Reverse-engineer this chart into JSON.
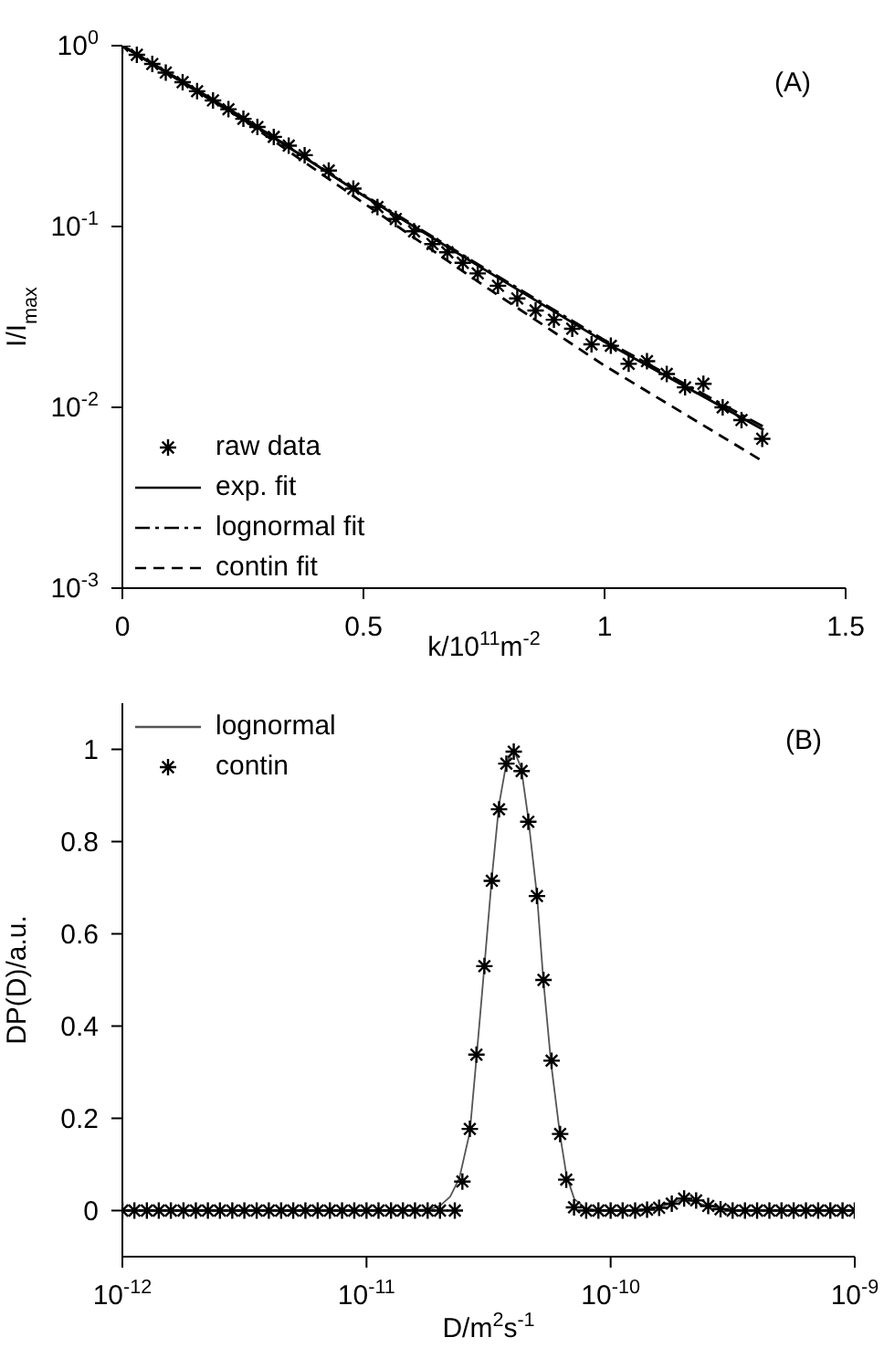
{
  "chart_data": [
    {
      "type": "line",
      "xlabel": "k/10$^{11}$m$^{-2}$",
      "ylabel": "I/I$_{max}$",
      "annotations": [
        "(A)"
      ],
      "log": "y",
      "grid": false,
      "legend": "bottom left",
      "xlim": [
        0,
        1.5
      ],
      "xticks": [
        0,
        0.5,
        1,
        1.5
      ],
      "ylim": [
        0.001,
        1
      ],
      "yticks": [
        {
          "value": 0.001,
          "label": "10$^{-3}$"
        },
        {
          "value": 0.01,
          "label": "10$^{-2}$"
        },
        {
          "value": 0.1,
          "label": "10$^{-1}$"
        },
        {
          "value": 1,
          "label": "10$^{0}$"
        }
      ],
      "series": [
        {
          "name": "raw data",
          "type": "scatter",
          "marker": "cross",
          "color": "#000000",
          "x": [
            0,
            0.03,
            0.062,
            0.09,
            0.125,
            0.155,
            0.188,
            0.22,
            0.251,
            0.28,
            0.314,
            0.345,
            0.378,
            0.428,
            0.479,
            0.529,
            0.567,
            0.605,
            0.643,
            0.674,
            0.706,
            0.737,
            0.779,
            0.819,
            0.857,
            0.895,
            0.933,
            0.973,
            1.013,
            1.05,
            1.088,
            1.129,
            1.167,
            1.205,
            1.245,
            1.284,
            1.327
          ],
          "values": [
            1,
            0.89,
            0.792,
            0.71,
            0.628,
            0.56,
            0.498,
            0.445,
            0.394,
            0.355,
            0.313,
            0.28,
            0.248,
            0.204,
            0.162,
            0.128,
            0.11,
            0.094,
            0.08,
            0.072,
            0.063,
            0.055,
            0.047,
            0.04,
            0.0343,
            0.0305,
            0.0272,
            0.0223,
            0.0219,
            0.0174,
            0.018,
            0.0153,
            0.0129,
            0.0135,
            0.01,
            0.0085,
            0.0067
          ]
        },
        {
          "name": "exp. fit",
          "line_style": "solid",
          "marker": "none",
          "color": "#000000",
          "x": [
            0,
            0.25,
            0.5,
            0.75,
            1.0,
            1.33
          ],
          "values": [
            1,
            0.4,
            0.148,
            0.058,
            0.023,
            0.0075
          ]
        },
        {
          "name": "lognormal fit",
          "line_style": "dashdot",
          "marker": "none",
          "color": "#000000",
          "x": [
            0,
            0.25,
            0.5,
            0.75,
            1.0,
            1.33
          ],
          "values": [
            1,
            0.4,
            0.15,
            0.059,
            0.0235,
            0.0078
          ]
        },
        {
          "name": "contin fit",
          "line_style": "dashed",
          "marker": "none",
          "color": "#000000",
          "x": [
            0,
            0.25,
            0.5,
            0.75,
            1.0,
            1.33
          ],
          "values": [
            1,
            0.39,
            0.135,
            0.047,
            0.017,
            0.005
          ]
        }
      ]
    },
    {
      "type": "line",
      "xlabel": "D/m$^{2}$s$^{-1}$",
      "ylabel": "DP(D)/a.u.",
      "annotations": [
        "(B)"
      ],
      "log": "x",
      "grid": false,
      "legend": "top left",
      "xlim": [
        1e-12,
        1e-09
      ],
      "xticks": [
        {
          "value": 1e-12,
          "label": "10$^{-12}$"
        },
        {
          "value": 1e-11,
          "label": "10$^{-11}$"
        },
        {
          "value": 1e-10,
          "label": "10$^{-10}$"
        },
        {
          "value": 1e-09,
          "label": "10$^{-9}$"
        }
      ],
      "ylim": [
        -0.1,
        1.1
      ],
      "yticks": [
        0,
        0.2,
        0.4,
        0.6,
        0.8,
        1
      ],
      "series": [
        {
          "name": "lognormal",
          "line_style": "solid",
          "marker": "none",
          "color": "#555555",
          "x": [
            1e-12,
            1e-11,
            1.8e-11,
            2e-11,
            2.2e-11,
            2.4e-11,
            2.65e-11,
            2.82e-11,
            3.04e-11,
            3.26e-11,
            3.49e-11,
            3.74e-11,
            4e-11,
            4.3e-11,
            4.6e-11,
            5e-11,
            5.3e-11,
            5.7e-11,
            6.2e-11,
            6.6e-11,
            7.1e-11,
            7.9e-11,
            9e-11,
            1.3e-10,
            1.6e-10,
            2e-10,
            2.5e-10,
            3.2e-10,
            1e-09
          ],
          "values": [
            0,
            0,
            0.002,
            0.01,
            0.03,
            0.07,
            0.17,
            0.33,
            0.53,
            0.72,
            0.88,
            0.97,
            1.0,
            0.96,
            0.85,
            0.68,
            0.5,
            0.32,
            0.165,
            0.075,
            0.025,
            0.005,
            0,
            0,
            0.008,
            0.025,
            0.01,
            0,
            0
          ]
        },
        {
          "name": "contin",
          "type": "scatter",
          "marker": "cross",
          "color": "#000000",
          "x": [
            1e-12,
            1.12e-12,
            1.26e-12,
            1.41e-12,
            1.58e-12,
            1.78e-12,
            2e-12,
            2.24e-12,
            2.51e-12,
            2.82e-12,
            3.16e-12,
            3.55e-12,
            3.98e-12,
            4.47e-12,
            5.01e-12,
            5.62e-12,
            6.31e-12,
            7.08e-12,
            7.94e-12,
            8.91e-12,
            1e-11,
            1.12e-11,
            1.26e-11,
            1.41e-11,
            1.58e-11,
            1.78e-11,
            2e-11,
            2.3e-11,
            2.47e-11,
            2.65e-11,
            2.82e-11,
            3.04e-11,
            3.26e-11,
            3.49e-11,
            3.74e-11,
            4.01e-11,
            4.32e-11,
            4.6e-11,
            4.99e-11,
            5.31e-11,
            5.73e-11,
            6.21e-11,
            6.58e-11,
            7.08e-11,
            7.94e-11,
            8.91e-11,
            1e-10,
            1.12e-10,
            1.26e-10,
            1.41e-10,
            1.58e-10,
            1.78e-10,
            2e-10,
            2.24e-10,
            2.51e-10,
            2.82e-10,
            3.16e-10,
            3.55e-10,
            3.98e-10,
            4.47e-10,
            5.01e-10,
            5.62e-10,
            6.31e-10,
            7.08e-10,
            7.94e-10,
            8.91e-10,
            1e-09
          ],
          "values": [
            0,
            0,
            0,
            0,
            0,
            0,
            0,
            0,
            0,
            0,
            0,
            0,
            0,
            0,
            0,
            0,
            0,
            0,
            0,
            0,
            0,
            0,
            0,
            0,
            0,
            0,
            0,
            0.0,
            0.063,
            0.177,
            0.338,
            0.53,
            0.715,
            0.87,
            0.969,
            0.995,
            0.953,
            0.843,
            0.682,
            0.5,
            0.325,
            0.166,
            0.067,
            0.007,
            0,
            0,
            0,
            0,
            0,
            0.002,
            0.006,
            0.015,
            0.026,
            0.022,
            0.01,
            0.003,
            0,
            0,
            0,
            0,
            0,
            0,
            0,
            0,
            0,
            0,
            0
          ]
        }
      ]
    }
  ]
}
